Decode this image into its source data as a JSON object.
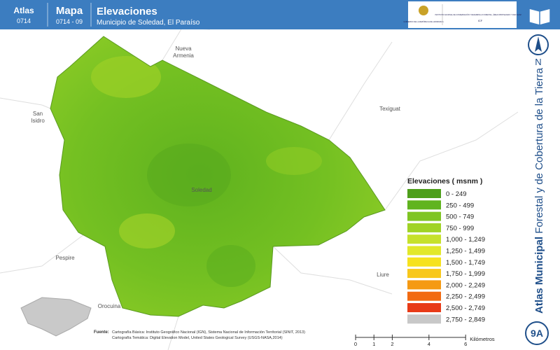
{
  "header": {
    "atlas_label": "Atlas",
    "atlas_code": "0714",
    "map_label": "Mapa",
    "map_code": "0714 - 09",
    "title": "Elevaciones",
    "subtitle": "Municipio de Soledad, El Paraíso",
    "logo_left": "GOBIERNO DE LA REPÚBLICA DE HONDURAS",
    "logo_right": "INSTITUTO NACIONAL DE CONSERVACIÓN Y DESARROLLO FORESTAL, ÁREAS PROTEGIDAS Y VIDA SILVESTRE",
    "logo_right_short": "ICF"
  },
  "places": [
    {
      "lines": [
        "Nueva",
        "Armenia"
      ]
    },
    {
      "lines": [
        "San",
        "Isidro"
      ]
    },
    {
      "lines": [
        "Texiguat"
      ]
    },
    {
      "lines": [
        "Soledad"
      ]
    },
    {
      "lines": [
        "Pespire"
      ]
    },
    {
      "lines": [
        "Liure"
      ]
    },
    {
      "lines": [
        "Orocuina"
      ]
    }
  ],
  "legend": {
    "title": "Elevaciones ( msnm )",
    "items": [
      {
        "label": "0 - 249",
        "color": "#4e9f1b"
      },
      {
        "label": "250 - 499",
        "color": "#60b41f"
      },
      {
        "label": "500 - 749",
        "color": "#7fc522"
      },
      {
        "label": "750 - 999",
        "color": "#a0d326"
      },
      {
        "label": "1,000 - 1,249",
        "color": "#c6e12c"
      },
      {
        "label": "1,250 - 1,499",
        "color": "#e2e82a"
      },
      {
        "label": "1,500 - 1,749",
        "color": "#f6e21e"
      },
      {
        "label": "1,750 - 1,999",
        "color": "#f8c81b"
      },
      {
        "label": "2,000 - 2,249",
        "color": "#f59a13"
      },
      {
        "label": "2,250 - 2,499",
        "color": "#f26a11"
      },
      {
        "label": "2,500 - 2,749",
        "color": "#e83a17"
      },
      {
        "label": "2,750 - 2,849",
        "color": "#c8c8c8"
      }
    ]
  },
  "source": {
    "label": "Fuente:",
    "line1": "Cartografía Básica: Instituto Geográfico Nacional (IGN), Sistema Nacional de Información Territorial (SINIT, 2013)",
    "line2": "Cartografía Temática: Digital Elevation Model, United States Geological Survey (USGS-NASA,2014)"
  },
  "scale": {
    "ticks": [
      0,
      1,
      2,
      4,
      6
    ],
    "unit": "Kilómetros"
  },
  "side": {
    "title_bold": "Atlas Municipal",
    "title_rest": " Forestal y de Cobertura de la Tierra",
    "north": "N",
    "page": "9A"
  }
}
